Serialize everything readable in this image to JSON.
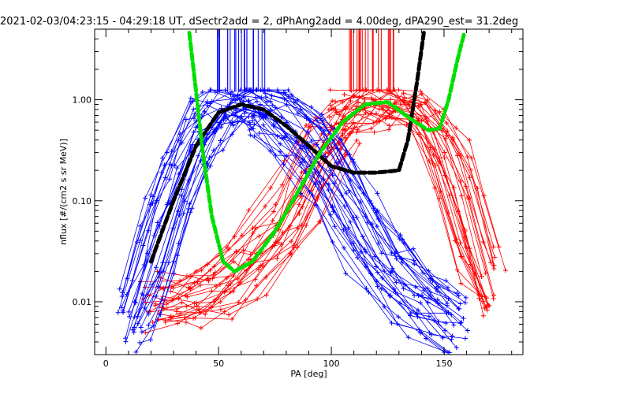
{
  "chart_data": {
    "type": "scatter",
    "title": "2021-02-03/04:23:15 - 04:29:18 UT, dSectr2add = 2, dPhAng2add = 4.00deg, dPA290_est=  31.2deg",
    "xlabel": "PA [deg]",
    "ylabel": "nflux [#/(cm2 s sr MeV)]",
    "x_scale": "linear",
    "y_scale": "log",
    "xlim": [
      -5,
      185
    ],
    "ylim": [
      0.003,
      5
    ],
    "x_ticks": [
      0,
      50,
      100,
      150
    ],
    "x_tick_labels": [
      "0",
      "50",
      "100",
      "150"
    ],
    "y_ticks": [
      0.01,
      0.1,
      1
    ],
    "y_tick_labels": [
      "0.01",
      "0.10",
      "1.00"
    ],
    "grid": false,
    "colors": {
      "blue": "#0000ff",
      "red": "#ff0000",
      "black": "#000000",
      "green": "#00e000"
    },
    "series": [
      {
        "color": "blue",
        "style": "lines-with-plus-markers",
        "rising_branch": {
          "x": [
            12,
            20,
            30,
            40,
            50,
            60,
            68
          ],
          "y": [
            0.006,
            0.02,
            0.12,
            0.4,
            0.8,
            0.95,
            0.9
          ]
        },
        "falling_branch": {
          "x": [
            68,
            80,
            95,
            110,
            125,
            140,
            155
          ],
          "y": [
            0.9,
            0.6,
            0.3,
            0.08,
            0.02,
            0.01,
            0.006
          ]
        },
        "tick_marks_x_range": [
          49,
          72
        ]
      },
      {
        "color": "red",
        "style": "lines-with-plus-markers",
        "low_branch": {
          "x": [
            22,
            40,
            60,
            80,
            95,
            105
          ],
          "y": [
            0.01,
            0.01,
            0.02,
            0.06,
            0.3,
            0.6
          ]
        },
        "peak_branch": {
          "x": [
            105,
            120,
            135,
            150,
            160,
            170
          ],
          "y": [
            0.6,
            0.95,
            0.9,
            0.4,
            0.08,
            0.01
          ]
        },
        "tick_marks_x_range": [
          108,
          130
        ]
      },
      {
        "color": "black",
        "style": "thick-dashed",
        "x": [
          20,
          30,
          40,
          50,
          60,
          70,
          80,
          90,
          100,
          110,
          120,
          130,
          134,
          138,
          141
        ],
        "y": [
          0.025,
          0.1,
          0.35,
          0.75,
          0.9,
          0.8,
          0.55,
          0.35,
          0.22,
          0.19,
          0.19,
          0.2,
          0.4,
          1.5,
          4.6
        ]
      },
      {
        "color": "green",
        "style": "thick-dashed",
        "x": [
          37,
          40,
          43,
          47,
          52,
          57,
          65,
          75,
          85,
          95,
          105,
          115,
          125,
          135,
          143,
          148,
          152,
          156,
          159
        ],
        "y": [
          4.6,
          1.2,
          0.3,
          0.07,
          0.025,
          0.02,
          0.025,
          0.05,
          0.12,
          0.3,
          0.6,
          0.9,
          0.95,
          0.65,
          0.5,
          0.52,
          1.0,
          2.5,
          4.6
        ]
      }
    ]
  }
}
